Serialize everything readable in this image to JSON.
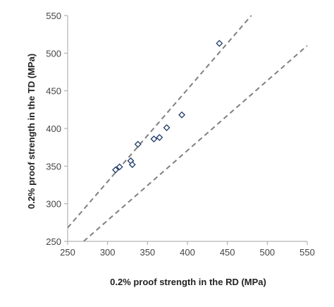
{
  "chart_data": {
    "type": "scatter",
    "title": "",
    "xlabel": "0.2% proof strength in the RD (MPa)",
    "ylabel": "0.2% proof strength in the TD (MPa)",
    "xlim": [
      250,
      550
    ],
    "ylim": [
      250,
      550
    ],
    "x_ticks": [
      "250",
      "300",
      "350",
      "400",
      "450",
      "500",
      "550"
    ],
    "y_ticks": [
      "250",
      "300",
      "350",
      "400",
      "450",
      "500",
      "550"
    ],
    "grid": false,
    "legend": "none",
    "marker": "diamond",
    "series": [
      {
        "points": [
          [
            310,
            345
          ],
          [
            315,
            349
          ],
          [
            329,
            357
          ],
          [
            331,
            352
          ],
          [
            338,
            379
          ],
          [
            358,
            386
          ],
          [
            365,
            388
          ],
          [
            374,
            401
          ],
          [
            393,
            418
          ],
          [
            440,
            513
          ]
        ]
      }
    ],
    "reference_lines": [
      {
        "style": "dashed",
        "points": [
          [
            250,
            268
          ],
          [
            480,
            550
          ]
        ]
      },
      {
        "style": "dashed",
        "points": [
          [
            270,
            250
          ],
          [
            550,
            510
          ]
        ]
      }
    ],
    "colors": {
      "marker_stroke": "#1f3864",
      "dashed_line": "#7f7f7f",
      "axis": "#a6a6a6"
    }
  }
}
